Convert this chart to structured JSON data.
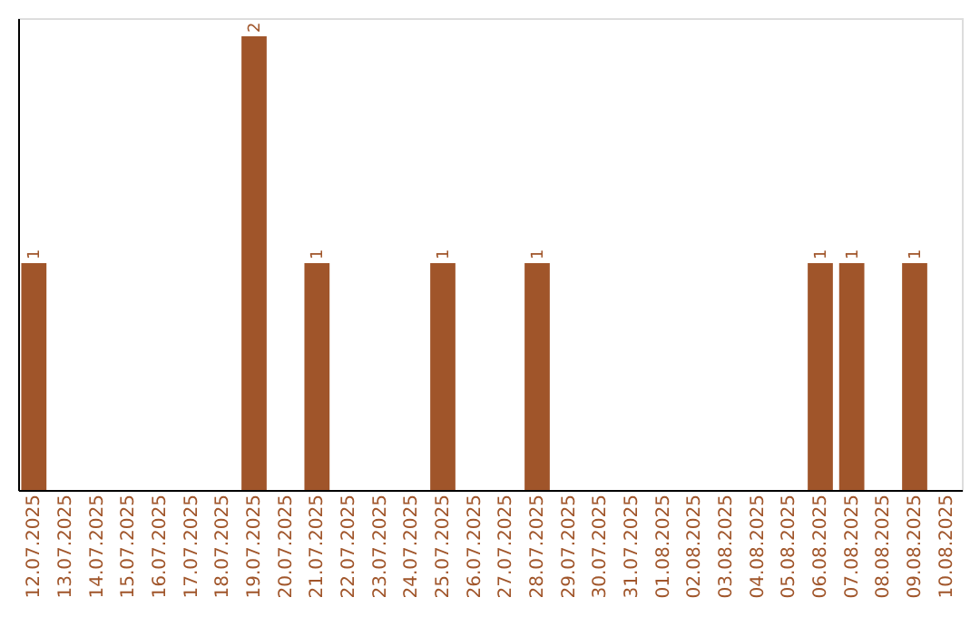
{
  "chart_data": {
    "type": "bar",
    "categories": [
      "12.07.2025",
      "13.07.2025",
      "14.07.2025",
      "15.07.2025",
      "16.07.2025",
      "17.07.2025",
      "18.07.2025",
      "19.07.2025",
      "20.07.2025",
      "21.07.2025",
      "22.07.2025",
      "23.07.2025",
      "24.07.2025",
      "25.07.2025",
      "26.07.2025",
      "27.07.2025",
      "28.07.2025",
      "29.07.2025",
      "30.07.2025",
      "31.07.2025",
      "01.08.2025",
      "02.08.2025",
      "03.08.2025",
      "04.08.2025",
      "05.08.2025",
      "06.08.2025",
      "07.08.2025",
      "08.08.2025",
      "09.08.2025",
      "10.08.2025"
    ],
    "values": [
      1,
      0,
      0,
      0,
      0,
      0,
      0,
      2,
      0,
      1,
      0,
      0,
      0,
      1,
      0,
      0,
      1,
      0,
      0,
      0,
      0,
      0,
      0,
      0,
      0,
      1,
      1,
      0,
      1,
      0
    ],
    "value_labels": [
      "1",
      null,
      null,
      null,
      null,
      null,
      null,
      "2",
      null,
      "1",
      null,
      null,
      null,
      "1",
      null,
      null,
      "1",
      null,
      null,
      null,
      null,
      null,
      null,
      null,
      null,
      "1",
      "1",
      null,
      "1",
      null
    ],
    "color": "#a0552a",
    "ylim": [
      0,
      2.08
    ],
    "tick_labels": "x"
  }
}
